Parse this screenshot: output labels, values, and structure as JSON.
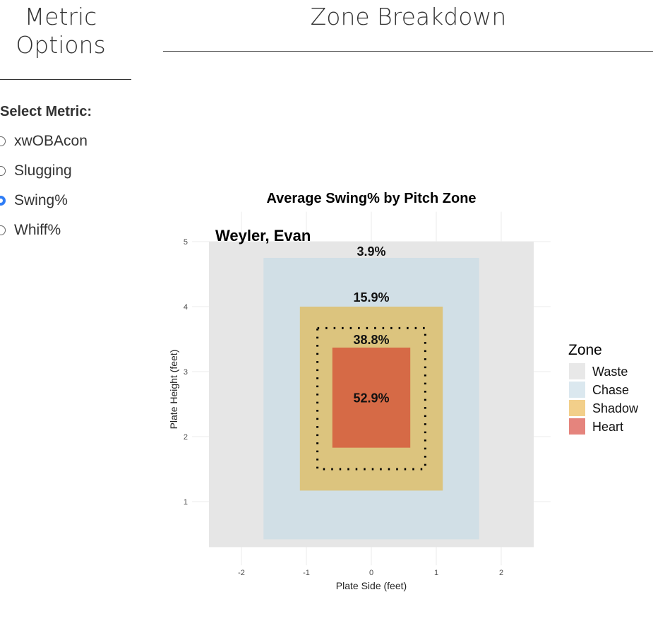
{
  "sidebar": {
    "title": "Metric Options",
    "select_label": "Select Metric:",
    "options": [
      {
        "label": "xwOBAcon",
        "selected": false
      },
      {
        "label": "Slugging",
        "selected": false
      },
      {
        "label": "Swing%",
        "selected": true
      },
      {
        "label": "Whiff%",
        "selected": false
      }
    ]
  },
  "main": {
    "title": "Zone Breakdown"
  },
  "chart_data": {
    "type": "heatmap",
    "title": "Average Swing% by Pitch Zone",
    "subtitle": "Weyler, Evan",
    "xlabel": "Plate Side (feet)",
    "ylabel": "Plate Height (feet)",
    "xlim": [
      -2.76,
      2.76
    ],
    "ylim": [
      0.02,
      5.46
    ],
    "xticks": [
      -2,
      -1,
      0,
      1,
      2
    ],
    "yticks": [
      1,
      2,
      3,
      4,
      5
    ],
    "grid": true,
    "legend": {
      "title": "Zone",
      "position": "right"
    },
    "zones": [
      {
        "name": "Waste",
        "value": "3.9%",
        "x": [
          -2.5,
          2.5
        ],
        "y": [
          0.3,
          5.0
        ],
        "fill": "#e6e6e6",
        "legend_color": "#e8e8e8",
        "label_y": 4.85
      },
      {
        "name": "Chase",
        "value": "15.9%",
        "x": [
          -1.66,
          1.66
        ],
        "y": [
          0.42,
          4.75
        ],
        "fill": "#d1dfe6",
        "legend_color": "#dbe8ef",
        "label_y": 4.14
      },
      {
        "name": "Shadow",
        "value": "38.8%",
        "x": [
          -1.1,
          1.1
        ],
        "y": [
          1.17,
          4.0
        ],
        "fill": "#dcc47e",
        "legend_color": "#f2cf8a",
        "label_y": 3.49
      },
      {
        "name": "Heart",
        "value": "52.9%",
        "x": [
          -0.6,
          0.6
        ],
        "y": [
          1.83,
          3.37
        ],
        "fill": "#d66a46",
        "legend_color": "#e5847d",
        "label_y": 2.59
      }
    ],
    "strike_zone": {
      "x": [
        -0.83,
        0.83
      ],
      "y": [
        1.5,
        3.67
      ]
    }
  }
}
